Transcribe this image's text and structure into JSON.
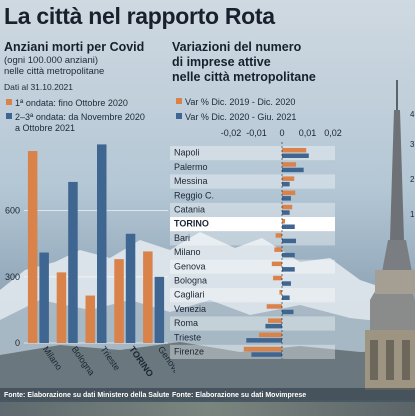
{
  "title": "La città nel rapporto Rota",
  "left_panel": {
    "title": "Anziani morti per Covid",
    "subtitle_1": "(ogni 100.000 anziani)",
    "subtitle_2": "nelle città metropolitane",
    "date_note": "Dati al 31.10.2021",
    "legend": [
      {
        "label": "1ª ondata: fino Ottobre 2020",
        "color": "#d9824a"
      },
      {
        "label_1": "2–3ª ondata: da Novembre 2020",
        "label_2": "a Ottobre 2021",
        "color": "#3f6591"
      }
    ],
    "source": "Fonte: Elaborazione su dati Ministero della Salute"
  },
  "right_panel": {
    "title_1": "Variazioni del numero",
    "title_2": "di imprese attive",
    "title_3": "nelle città metropolitane",
    "legend": [
      {
        "label": "Var % Dic. 2019 - Dic. 2020",
        "color": "#d9824a"
      },
      {
        "label": "Var % Dic. 2020 - Giu. 2021",
        "color": "#3f6591"
      }
    ],
    "source": "Fonte: Elaborazione su dati Movimprese"
  },
  "chart_data": [
    {
      "type": "bar",
      "categories": [
        "Milano",
        "Bologna",
        "Trieste",
        "TORINO",
        "Genova"
      ],
      "highlight": "TORINO",
      "series": [
        {
          "name": "1ª ondata: fino Ottobre 2020",
          "color": "#d9824a",
          "values": [
            870,
            320,
            215,
            380,
            415
          ]
        },
        {
          "name": "2–3ª ondata: da Novembre 2020 a Ottobre 2021",
          "color": "#3f6591",
          "values": [
            410,
            730,
            900,
            495,
            300
          ]
        }
      ],
      "yticks": [
        0,
        300,
        600
      ],
      "ylim": [
        0,
        920
      ],
      "grid": true
    },
    {
      "type": "bar",
      "orientation": "horizontal",
      "categories": [
        "Napoli",
        "Palermo",
        "Messina",
        "Reggio C.",
        "Catania",
        "TORINO",
        "Bari",
        "Milano",
        "Genova",
        "Bologna",
        "Cagliari",
        "Venezia",
        "Roma",
        "Trieste",
        "Firenze"
      ],
      "highlight": "TORINO",
      "series": [
        {
          "name": "Var % Dic. 2019 - Dic. 2020",
          "color": "#d9824a",
          "values": [
            0.0095,
            0.0055,
            0.0048,
            0.0052,
            0.004,
            0.0012,
            -0.0025,
            -0.003,
            -0.004,
            -0.0035,
            -0.001,
            -0.006,
            -0.0055,
            -0.009,
            -0.015
          ]
        },
        {
          "name": "Var % Dic. 2020 - Giu. 2021",
          "color": "#3f6591",
          "values": [
            0.0105,
            0.0085,
            0.003,
            0.0035,
            0.003,
            0.005,
            0.0055,
            0.005,
            0.005,
            0.0035,
            0.003,
            0.0045,
            -0.0065,
            -0.014,
            -0.012
          ]
        }
      ],
      "xticks": [
        "-0,02",
        "-0,01",
        "0",
        "0,01",
        "0,02"
      ],
      "xtick_values": [
        -0.02,
        -0.01,
        0,
        0.01,
        0.02
      ],
      "xlim": [
        -0.02,
        0.02
      ]
    }
  ]
}
